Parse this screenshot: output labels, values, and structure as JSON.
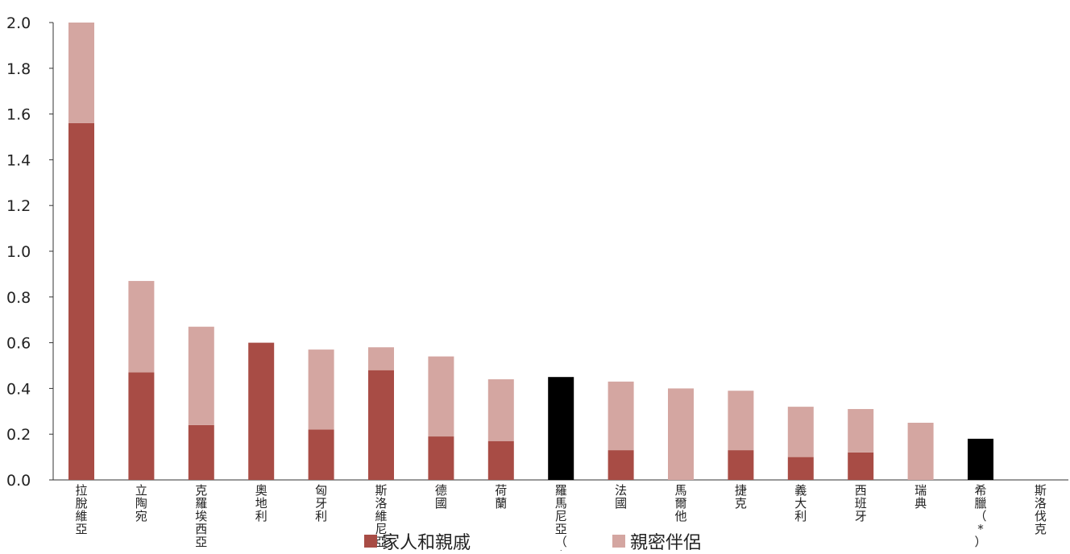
{
  "chart_data": {
    "type": "bar",
    "stacked": true,
    "ylim": [
      0,
      2.0
    ],
    "yticks": [
      "0.0",
      "0.2",
      "0.4",
      "0.6",
      "0.8",
      "1.0",
      "1.2",
      "1.4",
      "1.6",
      "1.8",
      "2.0"
    ],
    "categories": [
      {
        "label": "拉脫維亞",
        "family": 1.56,
        "partner": 0.44,
        "total_only": null
      },
      {
        "label": "立陶宛",
        "family": 0.47,
        "partner": 0.4,
        "total_only": null
      },
      {
        "label": "克羅埃西亞",
        "family": 0.24,
        "partner": 0.43,
        "total_only": null
      },
      {
        "label": "奧地利",
        "family": 0.6,
        "partner": 0.0,
        "total_only": null
      },
      {
        "label": "匈牙利",
        "family": 0.22,
        "partner": 0.35,
        "total_only": null
      },
      {
        "label": "斯洛維尼亞",
        "family": 0.48,
        "partner": 0.1,
        "total_only": null
      },
      {
        "label": "德國",
        "family": 0.19,
        "partner": 0.35,
        "total_only": null
      },
      {
        "label": "荷蘭",
        "family": 0.17,
        "partner": 0.27,
        "total_only": null
      },
      {
        "label": "羅馬尼亞（*）",
        "family": null,
        "partner": null,
        "total_only": 0.45
      },
      {
        "label": "法國",
        "family": 0.13,
        "partner": 0.3,
        "total_only": null
      },
      {
        "label": "馬爾他",
        "family": 0.0,
        "partner": 0.4,
        "total_only": null
      },
      {
        "label": "捷克",
        "family": 0.13,
        "partner": 0.26,
        "total_only": null
      },
      {
        "label": "義大利",
        "family": 0.1,
        "partner": 0.22,
        "total_only": null
      },
      {
        "label": "西班牙",
        "family": 0.12,
        "partner": 0.19,
        "total_only": null
      },
      {
        "label": "瑞典",
        "family": 0.0,
        "partner": 0.25,
        "total_only": null
      },
      {
        "label": "希臘（*）",
        "family": null,
        "partner": null,
        "total_only": 0.18
      },
      {
        "label": "斯洛伐克",
        "family": 0.0,
        "partner": 0.0,
        "total_only": null
      }
    ],
    "colors": {
      "family": "#a84c45",
      "partner": "#d4a6a1",
      "total_only": "#000000"
    },
    "legend": {
      "placement": "bottom",
      "family": "家人和親戚",
      "partner": "親密伴侶"
    }
  }
}
